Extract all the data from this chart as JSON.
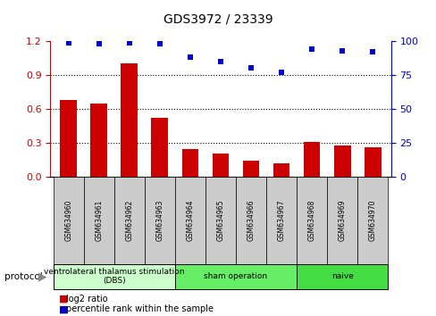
{
  "title": "GDS3972 / 23339",
  "samples": [
    "GSM634960",
    "GSM634961",
    "GSM634962",
    "GSM634963",
    "GSM634964",
    "GSM634965",
    "GSM634966",
    "GSM634967",
    "GSM634968",
    "GSM634969",
    "GSM634970"
  ],
  "log2_ratio": [
    0.68,
    0.65,
    1.0,
    0.52,
    0.25,
    0.21,
    0.14,
    0.12,
    0.31,
    0.28,
    0.26
  ],
  "percentile_rank": [
    99,
    98,
    99,
    98,
    88,
    85,
    80,
    77,
    94,
    93,
    92
  ],
  "bar_color": "#cc0000",
  "scatter_color": "#0000cc",
  "ylim_left": [
    0,
    1.2
  ],
  "ylim_right": [
    0,
    100
  ],
  "yticks_left": [
    0,
    0.3,
    0.6,
    0.9,
    1.2
  ],
  "yticks_right": [
    0,
    25,
    50,
    75,
    100
  ],
  "groups": [
    {
      "label": "ventrolateral thalamus stimulation\n(DBS)",
      "start": 0,
      "end": 3,
      "color": "#ccffcc"
    },
    {
      "label": "sham operation",
      "start": 4,
      "end": 7,
      "color": "#66ee66"
    },
    {
      "label": "naive",
      "start": 8,
      "end": 10,
      "color": "#44dd44"
    }
  ],
  "protocol_label": "protocol",
  "legend_bar_label": "log2 ratio",
  "legend_scatter_label": "percentile rank within the sample",
  "bg_color": "#ffffff",
  "tick_label_color_left": "#cc0000",
  "tick_label_color_right": "#0000cc",
  "xlabel_box_color": "#cccccc",
  "title_fontsize": 10,
  "bar_width": 0.55
}
